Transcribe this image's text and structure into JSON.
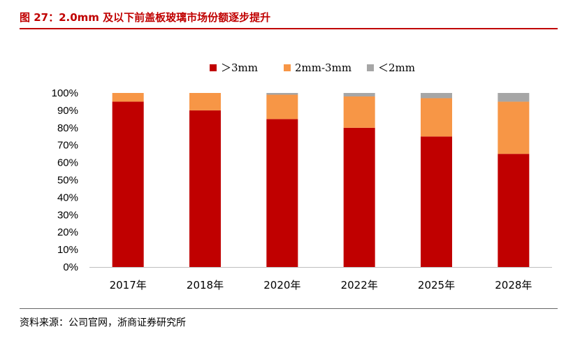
{
  "title": "图 27：2.0mm 及以下前盖板玻璃市场份额逐步提升",
  "source": "资料来源：公司官网，浙商证券研究所",
  "colors": {
    "red": "#c00000",
    "orange": "#f79646",
    "gray": "#a6a6a6",
    "title": "#c00000"
  },
  "chart_data": {
    "type": "bar",
    "stacked": true,
    "categories": [
      "2017年",
      "2018年",
      "2020年",
      "2022年",
      "2025年",
      "2028年"
    ],
    "series": [
      {
        "name": "＞3mm",
        "color": "#c00000",
        "values": [
          95,
          90,
          85,
          80,
          75,
          65
        ]
      },
      {
        "name": "2mm-3mm",
        "color": "#f79646",
        "values": [
          5,
          10,
          14,
          18,
          22,
          30
        ]
      },
      {
        "name": "＜2mm",
        "color": "#a6a6a6",
        "values": [
          0,
          0,
          1,
          2,
          3,
          5
        ]
      }
    ],
    "ylim": [
      0,
      100
    ],
    "yticks": [
      "0%",
      "10%",
      "20%",
      "30%",
      "40%",
      "50%",
      "60%",
      "70%",
      "80%",
      "90%",
      "100%"
    ],
    "legend": "top",
    "grid": false
  }
}
